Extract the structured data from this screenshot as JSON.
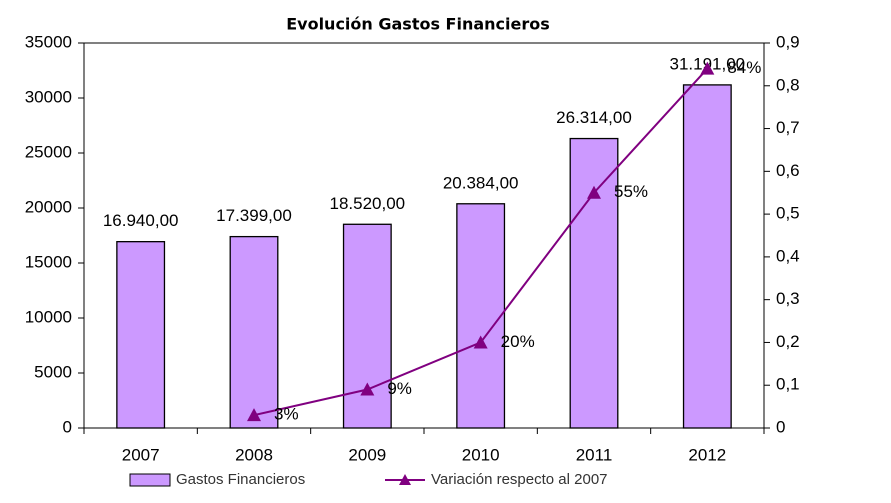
{
  "chart_data": {
    "type": "bar",
    "title": "Evolución Gastos  Financieros",
    "categories": [
      "2007",
      "2008",
      "2009",
      "2010",
      "2011",
      "2012"
    ],
    "series": [
      {
        "name": "Gastos Financieros",
        "color": "#cc99ff",
        "values": [
          16940,
          17399,
          18520,
          20384,
          26314,
          31191
        ],
        "value_labels": [
          "16.940,00",
          "17.399,00",
          "18.520,00",
          "20.384,00",
          "26.314,00",
          "31.191,00"
        ]
      },
      {
        "name": "Variación respecto al 2007",
        "type": "line",
        "axis": "y2",
        "color": "#800080",
        "values": [
          null,
          0.03,
          0.09,
          0.2,
          0.55,
          0.84
        ],
        "value_labels": [
          null,
          "3%",
          "9%",
          "20%",
          "55%",
          "84%"
        ]
      }
    ],
    "ylim": [
      0,
      35000
    ],
    "yticks": [
      0,
      5000,
      10000,
      15000,
      20000,
      25000,
      30000,
      35000
    ],
    "y2lim": [
      0,
      0.9
    ],
    "y2ticks": [
      0,
      {
        "value": 0.1,
        "label": "0,1"
      },
      {
        "value": 0.2,
        "label": "0,2"
      },
      {
        "value": 0.3,
        "label": "0,3"
      },
      {
        "value": 0.4,
        "label": "0,4"
      },
      {
        "value": 0.5,
        "label": "0,5"
      },
      {
        "value": 0.6,
        "label": "0,6"
      },
      {
        "value": 0.7,
        "label": "0,7"
      },
      {
        "value": 0.8,
        "label": "0,8"
      },
      {
        "value": 0.9,
        "label": "0,9"
      }
    ],
    "grid": false,
    "legend": "bottom"
  }
}
